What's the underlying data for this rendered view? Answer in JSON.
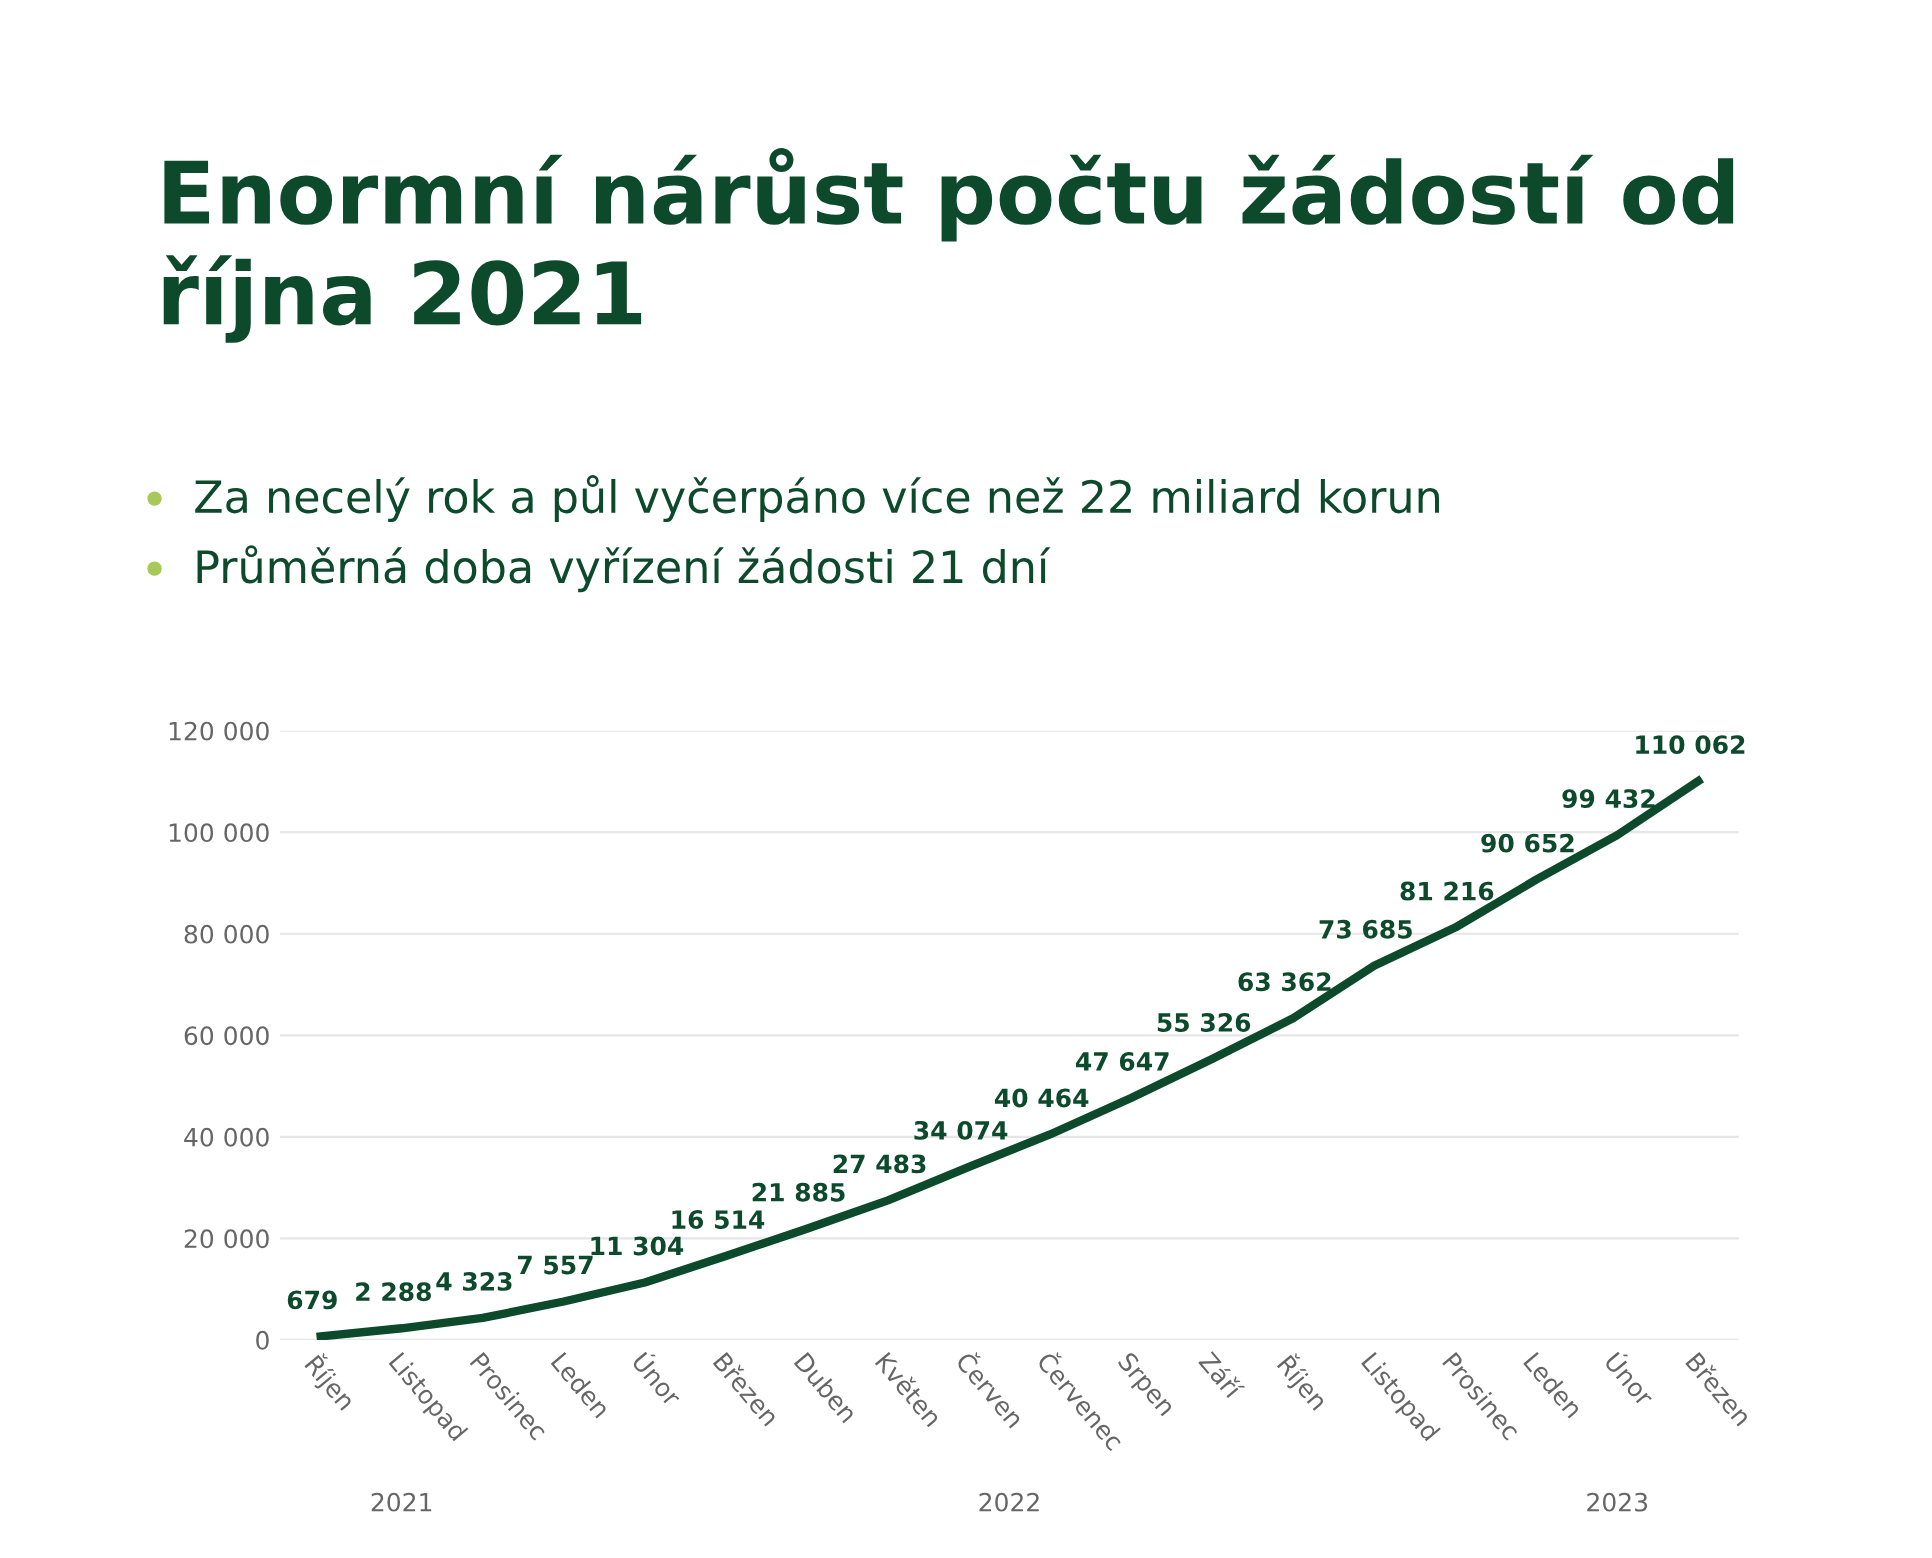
{
  "chart_data": {
    "type": "line",
    "title": "Enormní nárůst počtu žádostí od října 2021",
    "annotations": [
      "Za necelý rok a půl vyčerpáno více než 22 miliard korun",
      "Průměrná doba vyřízení žádosti 21 dní",
      "2021",
      "2022",
      "2023"
    ],
    "categories": [
      "Říjen",
      "Listopad",
      "Prosinec",
      "Leden",
      "Únor",
      "Březen",
      "Duben",
      "Květen",
      "Červen",
      "Červenec",
      "Srpen",
      "Září",
      "Říjen",
      "Listopad",
      "Prosinec",
      "Leden",
      "Únor",
      "Březen"
    ],
    "series": [
      {
        "color": "#0d4a2c",
        "values": [
          679,
          2288,
          4323,
          7557,
          11304,
          16514,
          21885,
          27483,
          34074,
          40464,
          47647,
          55326,
          63362,
          73685,
          81216,
          90652,
          99432,
          110062
        ]
      }
    ],
    "ylim": [
      0,
      120000
    ],
    "yticks": [
      {
        "value": 0,
        "label": "0"
      },
      {
        "value": 20000,
        "label": "20 000"
      },
      {
        "value": 40000,
        "label": "40 000"
      },
      {
        "value": 60000,
        "label": "60 000"
      },
      {
        "value": 80000,
        "label": "80 000"
      },
      {
        "value": 100000,
        "label": "100 000"
      },
      {
        "value": 120000,
        "label": "120 000"
      }
    ],
    "grid": "y",
    "data_labels": true,
    "marker": "none",
    "line_style": "solid"
  }
}
